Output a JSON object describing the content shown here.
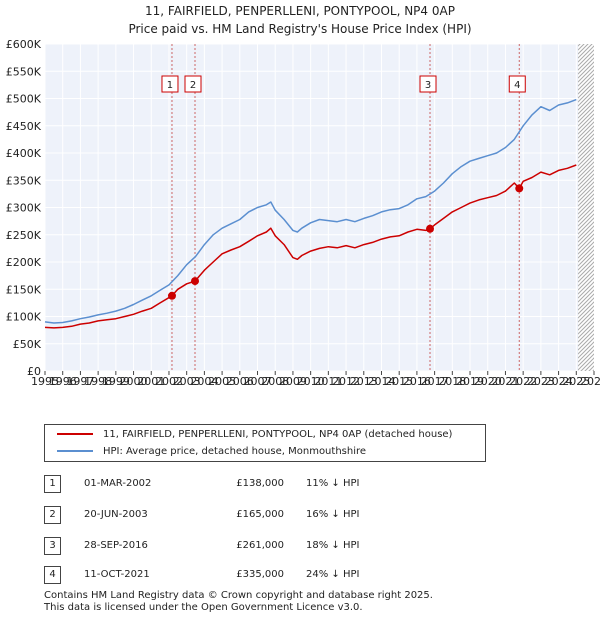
{
  "chart_data": {
    "type": "line",
    "title": "11, FAIRFIELD, PENPERLLENI, PONTYPOOL, NP4 0AP",
    "subtitle": "Price paid vs. HM Land Registry's House Price Index (HPI)",
    "xlabel": "",
    "ylabel": "",
    "xlim": [
      1995,
      2026
    ],
    "ylim": [
      0,
      600000
    ],
    "y_ticks": [
      0,
      50000,
      100000,
      150000,
      200000,
      250000,
      300000,
      350000,
      400000,
      450000,
      500000,
      550000,
      600000
    ],
    "y_tick_labels": [
      "£0",
      "£50K",
      "£100K",
      "£150K",
      "£200K",
      "£250K",
      "£300K",
      "£350K",
      "£400K",
      "£450K",
      "£500K",
      "£550K",
      "£600K"
    ],
    "x_ticks": [
      1995,
      1996,
      1997,
      1998,
      1999,
      2000,
      2001,
      2002,
      2003,
      2004,
      2005,
      2006,
      2007,
      2008,
      2009,
      2010,
      2011,
      2012,
      2013,
      2014,
      2015,
      2016,
      2017,
      2018,
      2019,
      2020,
      2021,
      2022,
      2023,
      2024,
      2025,
      2026
    ],
    "x_tick_labels": [
      "1995",
      "1996",
      "1997",
      "1998",
      "1999",
      "2000",
      "2001",
      "2002",
      "2003",
      "2004",
      "2005",
      "2006",
      "2007",
      "2008",
      "2009",
      "2010",
      "2011",
      "2012",
      "2013",
      "2014",
      "2015",
      "2016",
      "2017",
      "2018",
      "2019",
      "2020",
      "2021",
      "2022",
      "2023",
      "2024",
      "2025",
      "2026"
    ],
    "grid": true,
    "shaded_region": {
      "from": 2025.1,
      "to": 2026,
      "label": "future (hatched)"
    },
    "series": [
      {
        "name": "11, FAIRFIELD, PENPERLLENI, PONTYPOOL, NP4 0AP (detached house)",
        "color": "#cc0000",
        "x": [
          1995.0,
          1995.5,
          1996.0,
          1996.5,
          1997.0,
          1997.5,
          1998.0,
          1998.5,
          1999.0,
          1999.5,
          2000.0,
          2000.5,
          2001.0,
          2001.5,
          2002.17,
          2002.5,
          2003.0,
          2003.47,
          2004.0,
          2004.5,
          2005.0,
          2005.5,
          2006.0,
          2006.5,
          2007.0,
          2007.5,
          2007.75,
          2008.0,
          2008.5,
          2009.0,
          2009.25,
          2009.5,
          2010.0,
          2010.5,
          2011.0,
          2011.5,
          2012.0,
          2012.5,
          2013.0,
          2013.5,
          2014.0,
          2014.5,
          2015.0,
          2015.5,
          2016.0,
          2016.5,
          2016.74,
          2017.0,
          2017.5,
          2018.0,
          2018.5,
          2019.0,
          2019.5,
          2020.0,
          2020.5,
          2021.0,
          2021.5,
          2021.78,
          2022.0,
          2022.5,
          2023.0,
          2023.5,
          2024.0,
          2024.5,
          2025.0
        ],
        "values": [
          80000,
          79000,
          80000,
          82000,
          86000,
          88000,
          92000,
          94000,
          96000,
          100000,
          104000,
          110000,
          115000,
          125000,
          138000,
          150000,
          160000,
          165000,
          185000,
          200000,
          215000,
          222000,
          228000,
          238000,
          248000,
          255000,
          262000,
          248000,
          232000,
          208000,
          205000,
          212000,
          220000,
          225000,
          228000,
          226000,
          230000,
          226000,
          232000,
          236000,
          242000,
          246000,
          248000,
          255000,
          260000,
          258000,
          261000,
          268000,
          280000,
          292000,
          300000,
          308000,
          314000,
          318000,
          322000,
          330000,
          345000,
          335000,
          348000,
          355000,
          365000,
          360000,
          368000,
          372000,
          378000
        ]
      },
      {
        "name": "HPI: Average price, detached house, Monmouthshire",
        "color": "#5b8fd0",
        "x": [
          1995.0,
          1995.5,
          1996.0,
          1996.5,
          1997.0,
          1997.5,
          1998.0,
          1998.5,
          1999.0,
          1999.5,
          2000.0,
          2000.5,
          2001.0,
          2001.5,
          2002.0,
          2002.5,
          2003.0,
          2003.5,
          2004.0,
          2004.5,
          2005.0,
          2005.5,
          2006.0,
          2006.5,
          2007.0,
          2007.5,
          2007.75,
          2008.0,
          2008.5,
          2009.0,
          2009.25,
          2009.5,
          2010.0,
          2010.5,
          2011.0,
          2011.5,
          2012.0,
          2012.5,
          2013.0,
          2013.5,
          2014.0,
          2014.5,
          2015.0,
          2015.5,
          2016.0,
          2016.5,
          2017.0,
          2017.5,
          2018.0,
          2018.5,
          2019.0,
          2019.5,
          2020.0,
          2020.5,
          2021.0,
          2021.5,
          2022.0,
          2022.5,
          2023.0,
          2023.5,
          2024.0,
          2024.5,
          2025.0
        ],
        "values": [
          90000,
          88000,
          89000,
          92000,
          96000,
          99000,
          103000,
          106000,
          110000,
          115000,
          122000,
          130000,
          138000,
          148000,
          158000,
          175000,
          195000,
          210000,
          232000,
          250000,
          262000,
          270000,
          278000,
          292000,
          300000,
          305000,
          310000,
          295000,
          278000,
          258000,
          255000,
          262000,
          272000,
          278000,
          276000,
          274000,
          278000,
          274000,
          280000,
          285000,
          292000,
          296000,
          298000,
          305000,
          316000,
          320000,
          330000,
          345000,
          362000,
          375000,
          385000,
          390000,
          395000,
          400000,
          410000,
          425000,
          450000,
          470000,
          485000,
          478000,
          488000,
          492000,
          498000
        ]
      }
    ],
    "sale_markers": [
      {
        "label": "1",
        "x": 2002.17,
        "value": 138000
      },
      {
        "label": "2",
        "x": 2003.47,
        "value": 165000
      },
      {
        "label": "3",
        "x": 2016.74,
        "value": 261000
      },
      {
        "label": "4",
        "x": 2021.78,
        "value": 335000
      }
    ]
  },
  "legend": {
    "items": [
      {
        "label": "11, FAIRFIELD, PENPERLLENI, PONTYPOOL, NP4 0AP (detached house)",
        "color": "#cc0000"
      },
      {
        "label": "HPI: Average price, detached house, Monmouthshire",
        "color": "#5b8fd0"
      }
    ]
  },
  "sales": [
    {
      "num": "1",
      "date": "01-MAR-2002",
      "price": "£138,000",
      "hpi": "11% ↓ HPI"
    },
    {
      "num": "2",
      "date": "20-JUN-2003",
      "price": "£165,000",
      "hpi": "16% ↓ HPI"
    },
    {
      "num": "3",
      "date": "28-SEP-2016",
      "price": "£261,000",
      "hpi": "18% ↓ HPI"
    },
    {
      "num": "4",
      "date": "11-OCT-2021",
      "price": "£335,000",
      "hpi": "24% ↓ HPI"
    }
  ],
  "footer": {
    "line1": "Contains HM Land Registry data © Crown copyright and database right 2025.",
    "line2": "This data is licensed under the Open Government Licence v3.0."
  }
}
